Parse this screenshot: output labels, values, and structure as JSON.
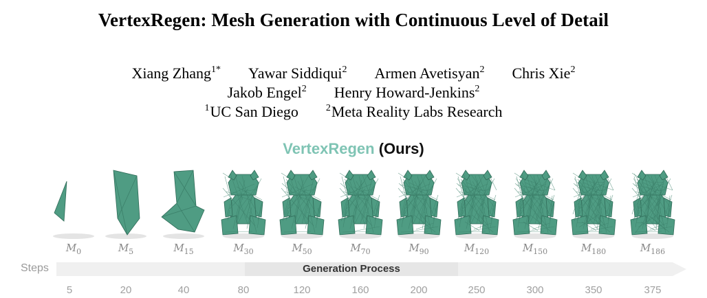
{
  "title": "VertexRegen: Mesh Generation with Continuous Level of Detail",
  "authors": [
    {
      "name": "Xiang Zhang",
      "sup": "1*"
    },
    {
      "name": "Yawar Siddiqui",
      "sup": "2"
    },
    {
      "name": "Armen Avetisyan",
      "sup": "2"
    },
    {
      "name": "Chris Xie",
      "sup": "2"
    },
    {
      "name": "Jakob Engel",
      "sup": "2"
    },
    {
      "name": "Henry Howard-Jenkins",
      "sup": "2"
    }
  ],
  "affiliations": [
    {
      "sup": "1",
      "name": "UC San Diego"
    },
    {
      "sup": "2",
      "name": "Meta Reality Labs Research"
    }
  ],
  "figure": {
    "method_name": "VertexRegen",
    "method_suffix": "(Ours)",
    "mesh_symbol": "M",
    "mesh_indices": [
      "0",
      "5",
      "15",
      "30",
      "50",
      "70",
      "90",
      "120",
      "150",
      "180",
      "186"
    ],
    "axis_label": "Steps",
    "process_label": "Generation Process",
    "steps": [
      "5",
      "20",
      "40",
      "80",
      "120",
      "160",
      "200",
      "250",
      "300",
      "350",
      "375"
    ],
    "colors": {
      "mesh": "#4f9c83",
      "brand": "#7fc4b4",
      "arrow": "#f0f0f0"
    }
  }
}
